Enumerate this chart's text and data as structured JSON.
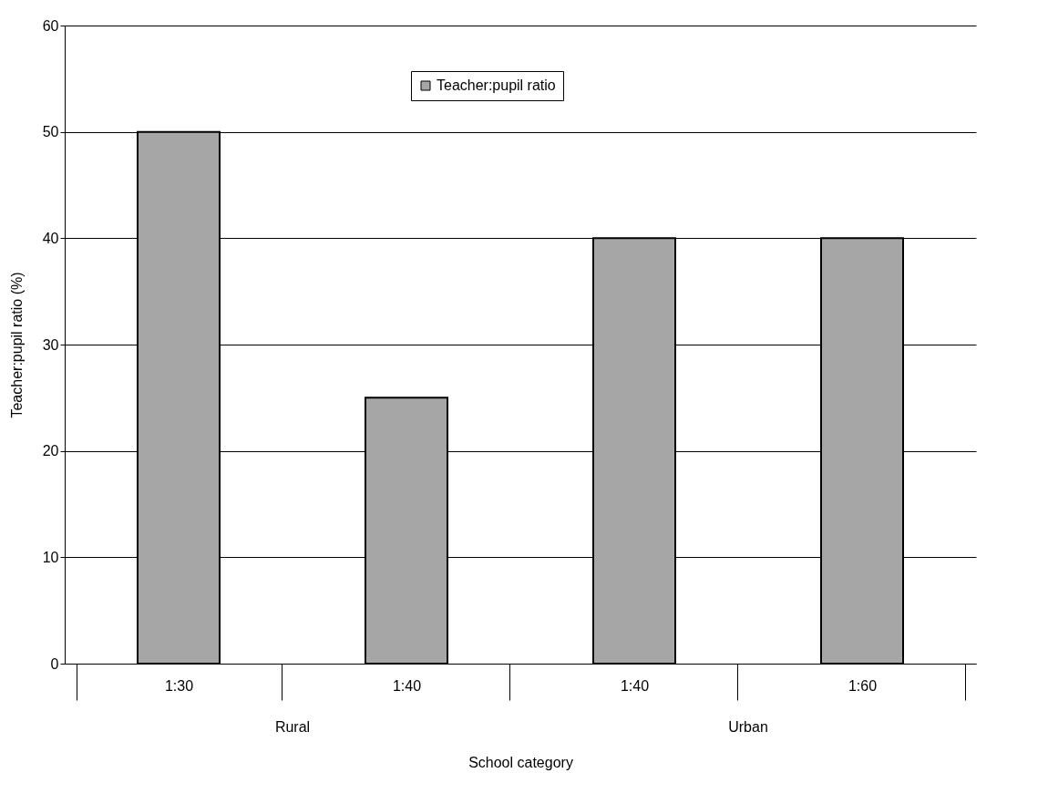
{
  "chart_data": {
    "type": "bar",
    "xlabel": "School category",
    "ylabel": "Teacher:pupil ratio (%)",
    "categories": [
      "1:30",
      "1:40",
      "1:40",
      "1:60"
    ],
    "series": [
      {
        "name": "Teacher:pupil ratio",
        "color": "#a6a6a6",
        "values": [
          50,
          25,
          40,
          40
        ]
      }
    ],
    "ylim": [
      0,
      60
    ],
    "yticks": [
      0,
      10,
      20,
      30,
      40,
      50,
      60
    ],
    "grid": "y",
    "legend": "top",
    "annotations": [
      "Rural",
      "Urban"
    ]
  }
}
